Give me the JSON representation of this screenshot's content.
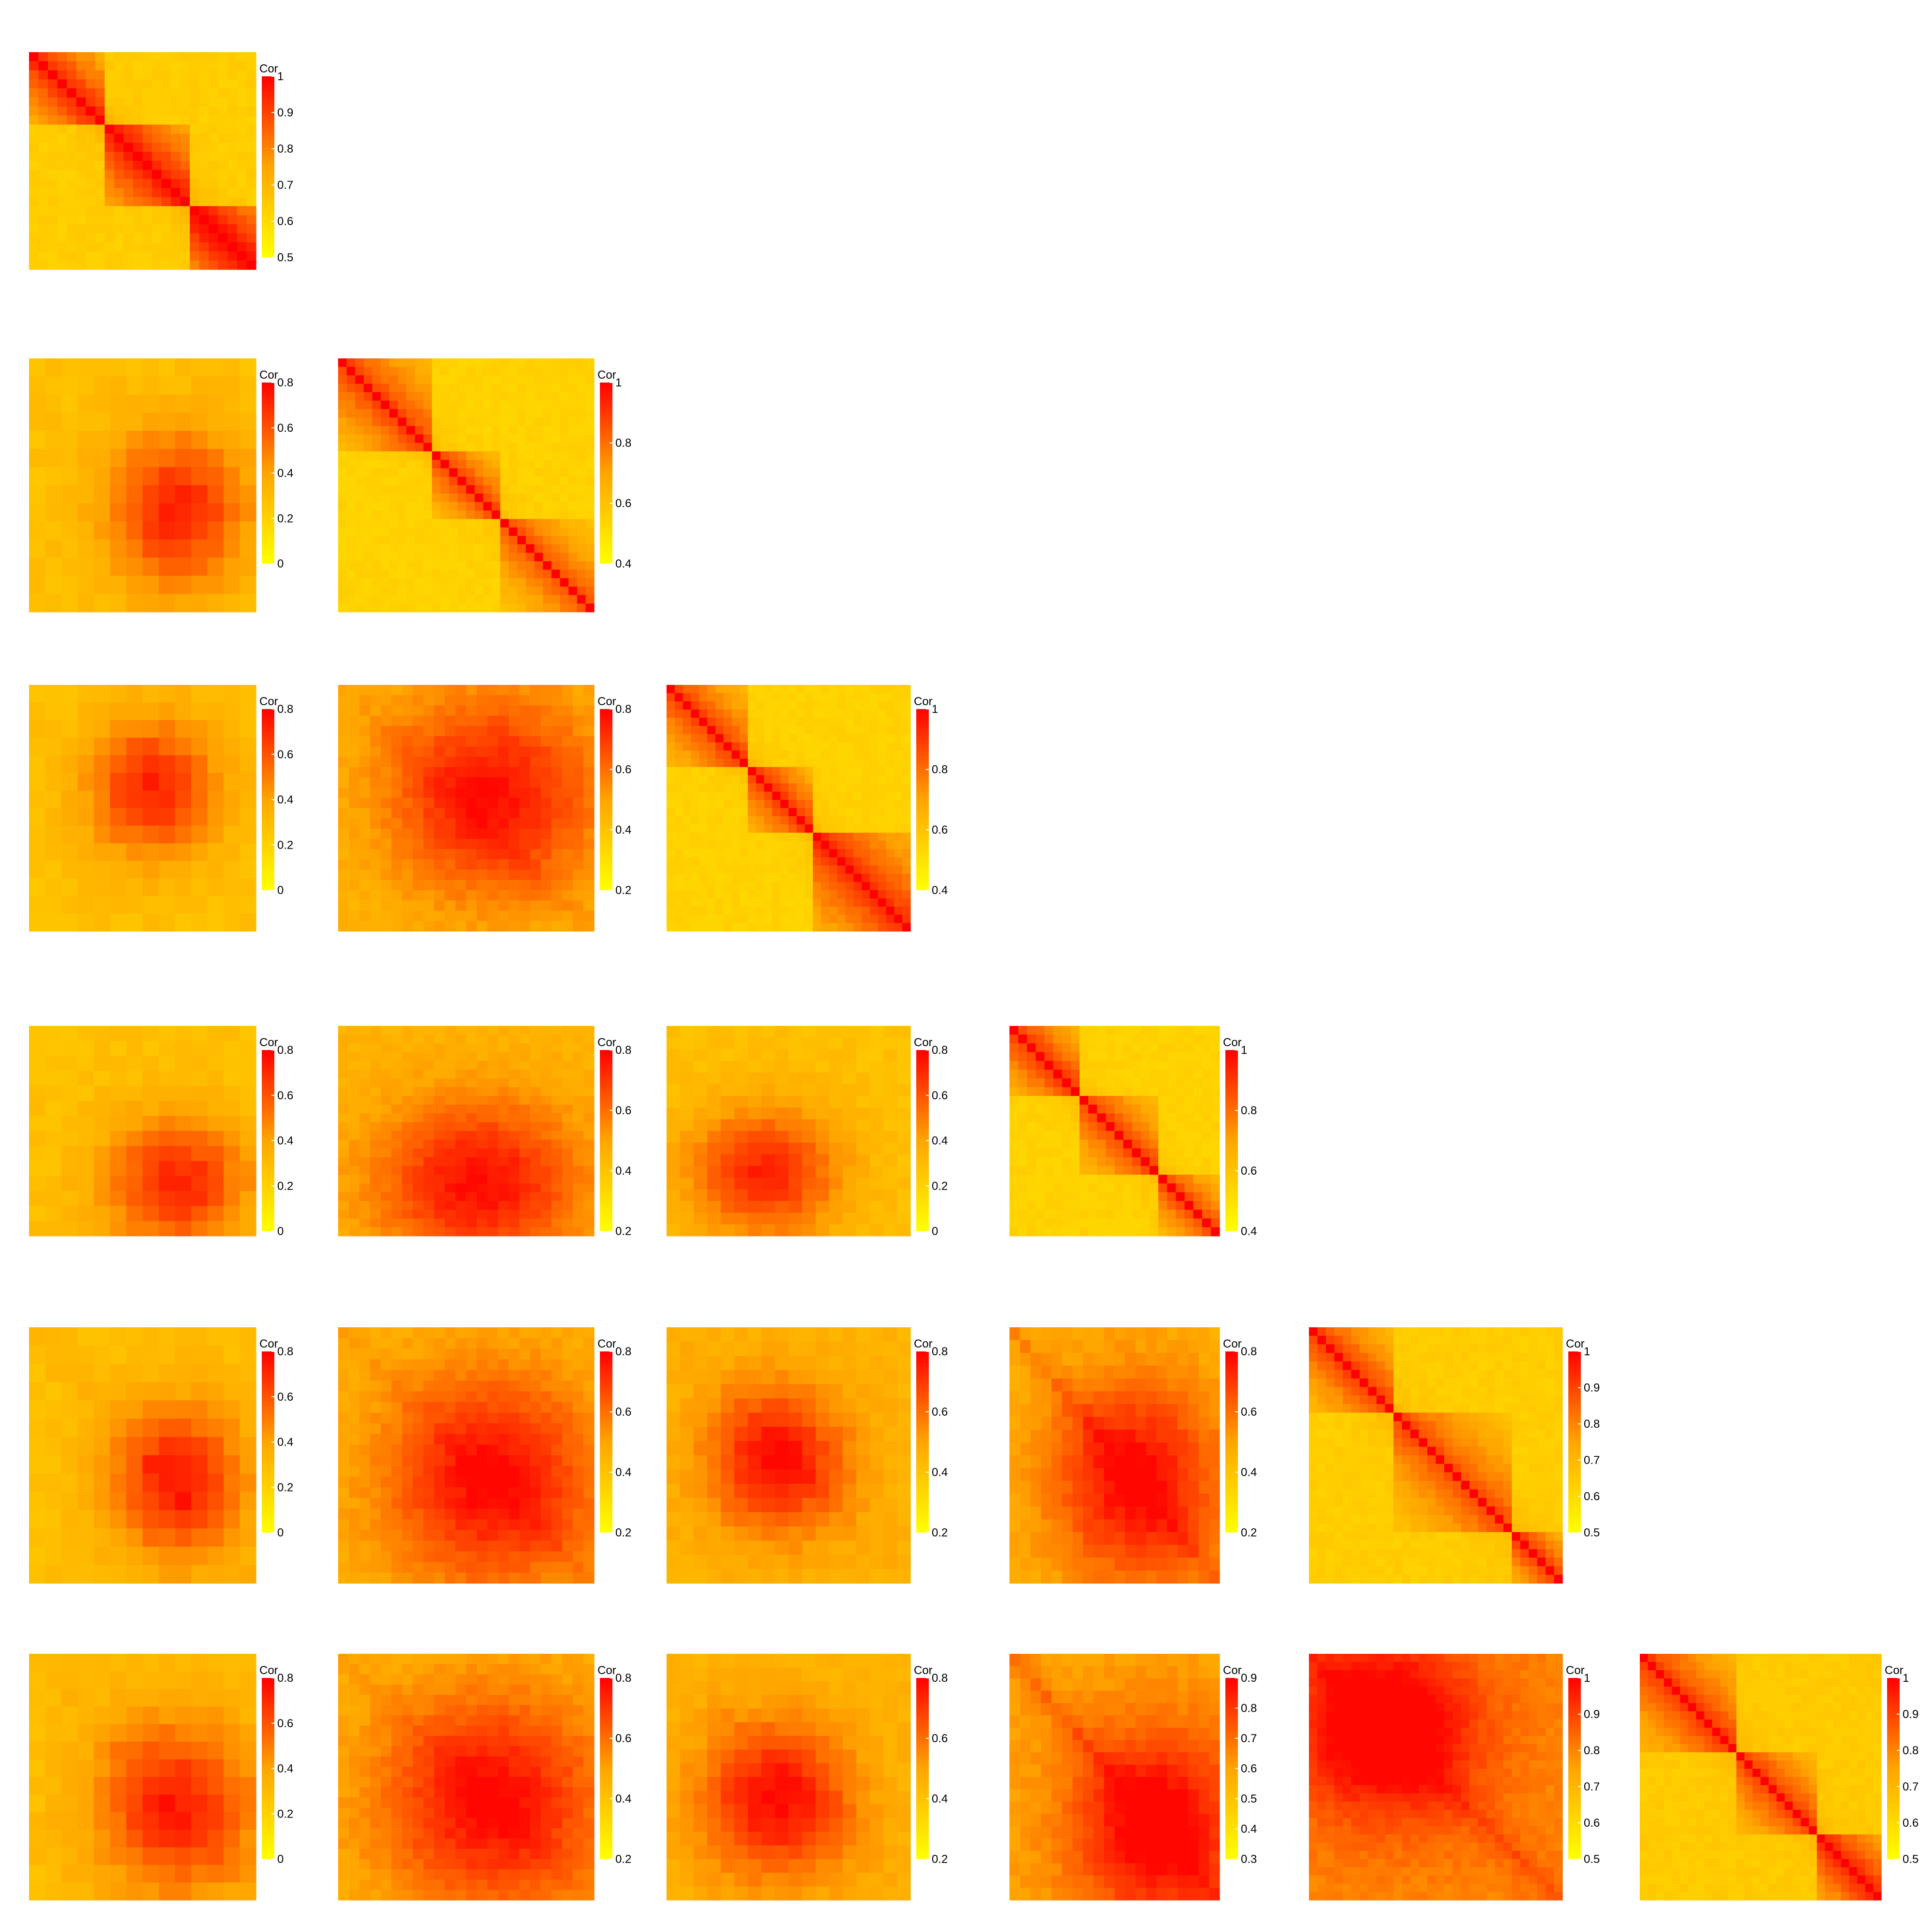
{
  "colors": {
    "low": "#FFFF00",
    "mid": "#FFA500",
    "high": "#FF0000",
    "background": "#FFFFFF"
  },
  "chart_data": [
    {
      "type": "heatmap",
      "row": 0,
      "col": 0,
      "n": 24,
      "diagonal": true,
      "legend_title": "Cor",
      "ticks": [
        "1",
        "0.9",
        "0.8",
        "0.7",
        "0.6",
        "0.5"
      ],
      "tick_values": [
        1,
        0.9,
        0.8,
        0.7,
        0.6,
        0.5
      ],
      "range": [
        0.5,
        1
      ],
      "blocks": [
        [
          0,
          8
        ],
        [
          8,
          17
        ],
        [
          17,
          24
        ]
      ],
      "block_strength": [
        0.78,
        0.82,
        0.9
      ],
      "offdiag": 0.55,
      "band": 0.35
    },
    {
      "type": "heatmap",
      "row": 1,
      "col": 0,
      "n": 14,
      "diagonal": false,
      "legend_title": "Cor",
      "ticks": [
        "0.8",
        "0.6",
        "0.4",
        "0.2",
        "0"
      ],
      "tick_values": [
        0.8,
        0.6,
        0.4,
        0.2,
        0
      ],
      "range": [
        0,
        0.8
      ],
      "peak": [
        0.65,
        0.6
      ],
      "peak_width": 0.22,
      "base": 0.35,
      "band": 0.0
    },
    {
      "type": "heatmap",
      "row": 1,
      "col": 1,
      "n": 30,
      "diagonal": true,
      "legend_title": "Cor",
      "ticks": [
        "1",
        "0.8",
        "0.6",
        "0.4"
      ],
      "tick_values": [
        1,
        0.8,
        0.6,
        0.4
      ],
      "range": [
        0.4,
        1
      ],
      "blocks": [
        [
          0,
          11
        ],
        [
          11,
          19
        ],
        [
          19,
          30
        ]
      ],
      "block_strength": [
        0.72,
        0.7,
        0.66
      ],
      "offdiag": 0.5,
      "band": 0.3
    },
    {
      "type": "heatmap",
      "row": 2,
      "col": 0,
      "n": 14,
      "diagonal": false,
      "legend_title": "Cor",
      "ticks": [
        "0.8",
        "0.6",
        "0.4",
        "0.2",
        "0"
      ],
      "tick_values": [
        0.8,
        0.6,
        0.4,
        0.2,
        0
      ],
      "range": [
        0,
        0.8
      ],
      "peak": [
        0.55,
        0.42
      ],
      "peak_width": 0.2,
      "base": 0.35,
      "band": 0.0
    },
    {
      "type": "heatmap",
      "row": 2,
      "col": 1,
      "n": 24,
      "diagonal": false,
      "legend_title": "Cor",
      "ticks": [
        "0.8",
        "0.6",
        "0.4",
        "0.2"
      ],
      "tick_values": [
        0.8,
        0.6,
        0.4,
        0.2
      ],
      "range": [
        0.2,
        0.8
      ],
      "peak": [
        0.6,
        0.45
      ],
      "peak_width": 0.3,
      "base": 0.4,
      "band": 0.25
    },
    {
      "type": "heatmap",
      "row": 2,
      "col": 2,
      "n": 30,
      "diagonal": true,
      "legend_title": "Cor",
      "ticks": [
        "1",
        "0.8",
        "0.6",
        "0.4"
      ],
      "tick_values": [
        1,
        0.8,
        0.6,
        0.4
      ],
      "range": [
        0.4,
        1
      ],
      "blocks": [
        [
          0,
          10
        ],
        [
          10,
          18
        ],
        [
          18,
          30
        ]
      ],
      "block_strength": [
        0.72,
        0.74,
        0.78
      ],
      "offdiag": 0.5,
      "band": 0.3
    },
    {
      "type": "heatmap",
      "row": 3,
      "col": 0,
      "n": 14,
      "diagonal": false,
      "legend_title": "Cor",
      "ticks": [
        "0.8",
        "0.6",
        "0.4",
        "0.2",
        "0"
      ],
      "tick_values": [
        0.8,
        0.6,
        0.4,
        0.2,
        0
      ],
      "range": [
        0,
        0.8
      ],
      "peak": [
        0.65,
        0.75
      ],
      "peak_width": 0.22,
      "base": 0.35,
      "band": 0.0
    },
    {
      "type": "heatmap",
      "row": 3,
      "col": 1,
      "n": 24,
      "diagonal": false,
      "legend_title": "Cor",
      "ticks": [
        "0.8",
        "0.6",
        "0.4",
        "0.2"
      ],
      "tick_values": [
        0.8,
        0.6,
        0.4,
        0.2
      ],
      "range": [
        0.2,
        0.8
      ],
      "peak": [
        0.55,
        0.75
      ],
      "peak_width": 0.28,
      "base": 0.42,
      "band": 0.0
    },
    {
      "type": "heatmap",
      "row": 3,
      "col": 2,
      "n": 18,
      "diagonal": false,
      "legend_title": "Cor",
      "ticks": [
        "0.8",
        "0.6",
        "0.4",
        "0.2",
        "0"
      ],
      "tick_values": [
        0.8,
        0.6,
        0.4,
        0.2,
        0
      ],
      "range": [
        0,
        0.8
      ],
      "peak": [
        0.4,
        0.7
      ],
      "peak_width": 0.22,
      "base": 0.35,
      "band": 0.0
    },
    {
      "type": "heatmap",
      "row": 3,
      "col": 3,
      "n": 24,
      "diagonal": true,
      "legend_title": "Cor",
      "ticks": [
        "1",
        "0.8",
        "0.6",
        "0.4"
      ],
      "tick_values": [
        1,
        0.8,
        0.6,
        0.4
      ],
      "range": [
        0.4,
        1
      ],
      "blocks": [
        [
          0,
          8
        ],
        [
          8,
          17
        ],
        [
          17,
          24
        ]
      ],
      "block_strength": [
        0.74,
        0.7,
        0.7
      ],
      "offdiag": 0.5,
      "band": 0.3
    },
    {
      "type": "heatmap",
      "row": 4,
      "col": 0,
      "n": 14,
      "diagonal": false,
      "legend_title": "Cor",
      "ticks": [
        "0.8",
        "0.6",
        "0.4",
        "0.2",
        "0"
      ],
      "tick_values": [
        0.8,
        0.6,
        0.4,
        0.2,
        0
      ],
      "range": [
        0,
        0.8
      ],
      "peak": [
        0.65,
        0.6
      ],
      "peak_width": 0.22,
      "base": 0.35,
      "band": 0.2
    },
    {
      "type": "heatmap",
      "row": 4,
      "col": 1,
      "n": 24,
      "diagonal": false,
      "legend_title": "Cor",
      "ticks": [
        "0.8",
        "0.6",
        "0.4",
        "0.2"
      ],
      "tick_values": [
        0.8,
        0.6,
        0.4,
        0.2
      ],
      "range": [
        0.2,
        0.8
      ],
      "peak": [
        0.6,
        0.6
      ],
      "peak_width": 0.3,
      "base": 0.42,
      "band": 0.25
    },
    {
      "type": "heatmap",
      "row": 4,
      "col": 2,
      "n": 18,
      "diagonal": false,
      "legend_title": "Cor",
      "ticks": [
        "0.8",
        "0.6",
        "0.4",
        "0.2"
      ],
      "tick_values": [
        0.8,
        0.6,
        0.4,
        0.2
      ],
      "range": [
        0.2,
        0.8
      ],
      "peak": [
        0.45,
        0.52
      ],
      "peak_width": 0.2,
      "base": 0.42,
      "band": 0.15
    },
    {
      "type": "heatmap",
      "row": 4,
      "col": 3,
      "n": 20,
      "diagonal": false,
      "legend_title": "Cor",
      "ticks": [
        "0.8",
        "0.6",
        "0.4",
        "0.2"
      ],
      "tick_values": [
        0.8,
        0.6,
        0.4,
        0.2
      ],
      "range": [
        0.2,
        0.8
      ],
      "peak": [
        0.6,
        0.6
      ],
      "peak_width": 0.3,
      "base": 0.42,
      "band": 0.5
    },
    {
      "type": "heatmap",
      "row": 4,
      "col": 4,
      "n": 30,
      "diagonal": true,
      "legend_title": "Cor",
      "ticks": [
        "1",
        "0.9",
        "0.8",
        "0.7",
        "0.6",
        "0.5"
      ],
      "tick_values": [
        1,
        0.9,
        0.8,
        0.7,
        0.6,
        0.5
      ],
      "range": [
        0.5,
        1
      ],
      "blocks": [
        [
          0,
          10
        ],
        [
          10,
          24
        ],
        [
          24,
          30
        ]
      ],
      "block_strength": [
        0.72,
        0.68,
        0.74
      ],
      "offdiag": 0.55,
      "band": 0.3
    },
    {
      "type": "heatmap",
      "row": 5,
      "col": 0,
      "n": 14,
      "diagonal": false,
      "legend_title": "Cor",
      "ticks": [
        "0.8",
        "0.6",
        "0.4",
        "0.2",
        "0"
      ],
      "tick_values": [
        0.8,
        0.6,
        0.4,
        0.2,
        0
      ],
      "range": [
        0,
        0.8
      ],
      "peak": [
        0.65,
        0.62
      ],
      "peak_width": 0.26,
      "base": 0.35,
      "band": 0.15
    },
    {
      "type": "heatmap",
      "row": 5,
      "col": 1,
      "n": 24,
      "diagonal": false,
      "legend_title": "Cor",
      "ticks": [
        "0.8",
        "0.6",
        "0.4",
        "0.2"
      ],
      "tick_values": [
        0.8,
        0.6,
        0.4,
        0.2
      ],
      "range": [
        0.2,
        0.8
      ],
      "peak": [
        0.6,
        0.6
      ],
      "peak_width": 0.32,
      "base": 0.42,
      "band": 0.25
    },
    {
      "type": "heatmap",
      "row": 5,
      "col": 2,
      "n": 18,
      "diagonal": false,
      "legend_title": "Cor",
      "ticks": [
        "0.8",
        "0.6",
        "0.4",
        "0.2"
      ],
      "tick_values": [
        0.8,
        0.6,
        0.4,
        0.2
      ],
      "range": [
        0.2,
        0.8
      ],
      "peak": [
        0.45,
        0.6
      ],
      "peak_width": 0.22,
      "base": 0.42,
      "band": 0.15
    },
    {
      "type": "heatmap",
      "row": 5,
      "col": 3,
      "n": 20,
      "diagonal": false,
      "legend_title": "Cor",
      "ticks": [
        "0.9",
        "0.8",
        "0.7",
        "0.6",
        "0.5",
        "0.4",
        "0.3"
      ],
      "tick_values": [
        0.9,
        0.8,
        0.7,
        0.6,
        0.5,
        0.4,
        0.3
      ],
      "range": [
        0.3,
        0.9
      ],
      "peak": [
        0.7,
        0.7
      ],
      "peak_width": 0.28,
      "base": 0.5,
      "band": 0.55
    },
    {
      "type": "heatmap",
      "row": 5,
      "col": 4,
      "n": 30,
      "diagonal": false,
      "legend_title": "Cor",
      "ticks": [
        "1",
        "0.9",
        "0.8",
        "0.7",
        "0.6",
        "0.5"
      ],
      "tick_values": [
        1,
        0.9,
        0.8,
        0.7,
        0.6,
        0.5
      ],
      "range": [
        0.5,
        1
      ],
      "peak": [
        0.3,
        0.3
      ],
      "peak_width": 0.25,
      "base": 0.6,
      "band": 0.55
    },
    {
      "type": "heatmap",
      "row": 5,
      "col": 5,
      "n": 30,
      "diagonal": true,
      "legend_title": "Cor",
      "ticks": [
        "1",
        "0.9",
        "0.8",
        "0.7",
        "0.6",
        "0.5"
      ],
      "tick_values": [
        1,
        0.9,
        0.8,
        0.7,
        0.6,
        0.5
      ],
      "range": [
        0.5,
        1
      ],
      "blocks": [
        [
          0,
          12
        ],
        [
          12,
          22
        ],
        [
          22,
          30
        ]
      ],
      "block_strength": [
        0.74,
        0.72,
        0.8
      ],
      "offdiag": 0.58,
      "band": 0.3
    }
  ]
}
